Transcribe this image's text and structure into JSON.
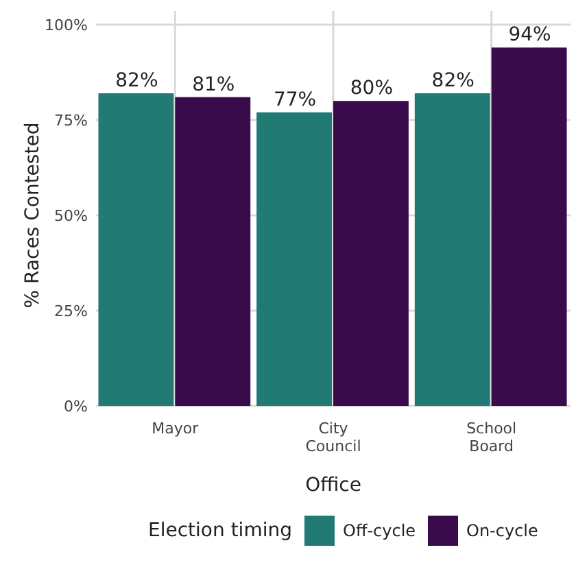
{
  "chart_data": {
    "type": "bar",
    "xlabel": "Office",
    "ylabel": "% Races Contested",
    "legend_title": "Election timing",
    "categories": [
      "Mayor",
      "City Council",
      "School Board"
    ],
    "series": [
      {
        "name": "Off-cycle",
        "color": "#217a74",
        "values": [
          82,
          77,
          82
        ],
        "value_labels": [
          "82%",
          "77%",
          "82%"
        ]
      },
      {
        "name": "On-cycle",
        "color": "#3a0b4b",
        "values": [
          81,
          80,
          94
        ],
        "value_labels": [
          "81%",
          "80%",
          "94%"
        ]
      }
    ],
    "ylim": [
      0,
      100
    ],
    "yticks": [
      {
        "value": 0,
        "label": "0%"
      },
      {
        "value": 25,
        "label": "25%"
      },
      {
        "value": 50,
        "label": "50%"
      },
      {
        "value": 75,
        "label": "75%"
      },
      {
        "value": 100,
        "label": "100%"
      }
    ],
    "grid": true,
    "legend": "bottom"
  }
}
